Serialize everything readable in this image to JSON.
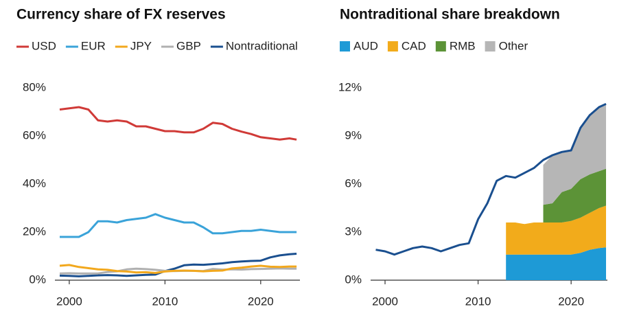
{
  "chart_data": [
    {
      "type": "line",
      "title": "Currency share of FX reserves",
      "x": [
        1999,
        2000,
        2001,
        2002,
        2003,
        2004,
        2005,
        2006,
        2007,
        2008,
        2009,
        2010,
        2011,
        2012,
        2013,
        2014,
        2015,
        2016,
        2017,
        2018,
        2019,
        2020,
        2021,
        2022,
        2023,
        2023.75
      ],
      "series": [
        {
          "name": "USD",
          "color": "#d03a37",
          "values": [
            71,
            71.5,
            72,
            71,
            66.5,
            66,
            66.5,
            66,
            64,
            64,
            63,
            62,
            62,
            61.5,
            61.5,
            63,
            65.5,
            65,
            63,
            61.8,
            60.8,
            59.5,
            59,
            58.5,
            59,
            58.5
          ]
        },
        {
          "name": "EUR",
          "color": "#3aa3d9",
          "values": [
            18,
            18,
            18,
            20,
            24.5,
            24.5,
            24,
            25,
            25.5,
            26,
            27.5,
            26,
            25,
            24,
            24,
            22,
            19.5,
            19.5,
            20,
            20.5,
            20.5,
            21,
            20.5,
            20,
            20,
            20
          ]
        },
        {
          "name": "JPY",
          "color": "#f2a81d",
          "values": [
            6,
            6.3,
            5.5,
            5,
            4.5,
            4.3,
            3.8,
            3.6,
            3.2,
            3.3,
            3,
            3.6,
            3.9,
            4,
            3.9,
            3.7,
            3.9,
            4,
            4.9,
            5.2,
            5.7,
            6,
            5.6,
            5.5,
            5.7,
            5.7
          ]
        },
        {
          "name": "GBP",
          "color": "#b0b0b0",
          "values": [
            2.8,
            2.9,
            2.8,
            2.8,
            2.8,
            3.4,
            3.7,
            4.5,
            4.8,
            4.6,
            4.3,
            3.9,
            3.8,
            3.9,
            3.9,
            3.8,
            4.7,
            4.4,
            4.5,
            4.4,
            4.6,
            4.7,
            4.8,
            4.9,
            4.8,
            4.8
          ]
        },
        {
          "name": "Nontraditional",
          "color": "#1a4f8f",
          "values": [
            1.9,
            1.8,
            1.6,
            1.8,
            2,
            2.1,
            2,
            1.8,
            2,
            2.2,
            2.3,
            3.8,
            4.8,
            6.2,
            6.5,
            6.4,
            6.7,
            7,
            7.5,
            7.8,
            8,
            8.1,
            9.5,
            10.3,
            10.8,
            11
          ]
        }
      ],
      "xlim": [
        1998.5,
        2024.1
      ],
      "xticks": [
        2000,
        2010,
        2020
      ],
      "ylim": [
        0,
        80
      ],
      "yticks": [
        {
          "value": 0,
          "label": "0%"
        },
        {
          "value": 20,
          "label": "20%"
        },
        {
          "value": 40,
          "label": "40%"
        },
        {
          "value": 60,
          "label": "60%"
        },
        {
          "value": 80,
          "label": "80%"
        }
      ],
      "grid": false,
      "legend": "top"
    },
    {
      "type": "area",
      "title": "Nontraditional share breakdown",
      "x": [
        1999,
        2000,
        2001,
        2002,
        2003,
        2004,
        2005,
        2006,
        2007,
        2008,
        2009,
        2010,
        2011,
        2012,
        2013,
        2014,
        2015,
        2016,
        2017,
        2018,
        2019,
        2020,
        2021,
        2022,
        2023,
        2023.75
      ],
      "series": [
        {
          "name": "AUD",
          "color": "#1e9ad6",
          "values": [
            null,
            null,
            null,
            null,
            null,
            null,
            null,
            null,
            null,
            null,
            null,
            null,
            null,
            null,
            1.6,
            1.6,
            1.6,
            1.6,
            1.6,
            1.6,
            1.6,
            1.6,
            1.7,
            1.9,
            2,
            2.05
          ]
        },
        {
          "name": "CAD",
          "color": "#f2ab1b",
          "values": [
            null,
            null,
            null,
            null,
            null,
            null,
            null,
            null,
            null,
            null,
            null,
            null,
            null,
            null,
            2,
            2,
            1.9,
            2,
            2,
            2,
            2,
            2.1,
            2.2,
            2.3,
            2.5,
            2.6
          ]
        },
        {
          "name": "RMB",
          "color": "#5c9337",
          "values": [
            null,
            null,
            null,
            null,
            null,
            null,
            null,
            null,
            null,
            null,
            null,
            null,
            null,
            null,
            null,
            null,
            null,
            null,
            1.1,
            1.2,
            1.9,
            2,
            2.4,
            2.4,
            2.3,
            2.3
          ]
        },
        {
          "name": "Other",
          "color": "#b6b6b6",
          "values": [
            null,
            null,
            null,
            null,
            null,
            null,
            null,
            null,
            null,
            null,
            null,
            null,
            null,
            null,
            null,
            null,
            null,
            null,
            2.5,
            3,
            2.5,
            2.4,
            3.2,
            3.7,
            4,
            4.05
          ]
        }
      ],
      "total_line": {
        "color": "#1a4f8f",
        "values": [
          1.9,
          1.8,
          1.6,
          1.8,
          2,
          2.1,
          2,
          1.8,
          2,
          2.2,
          2.3,
          3.8,
          4.8,
          6.2,
          6.5,
          6.4,
          6.7,
          7,
          7.5,
          7.8,
          8,
          8.1,
          9.5,
          10.3,
          10.8,
          11
        ]
      },
      "xlim": [
        1998.45,
        2023.9
      ],
      "xticks": [
        2000,
        2010,
        2020
      ],
      "ylim": [
        0,
        12
      ],
      "yticks": [
        {
          "value": 0,
          "label": "0%"
        },
        {
          "value": 3,
          "label": "3%"
        },
        {
          "value": 6,
          "label": "6%"
        },
        {
          "value": 9,
          "label": "9%"
        },
        {
          "value": 12,
          "label": "12%"
        }
      ],
      "grid": false,
      "legend": "top"
    }
  ]
}
